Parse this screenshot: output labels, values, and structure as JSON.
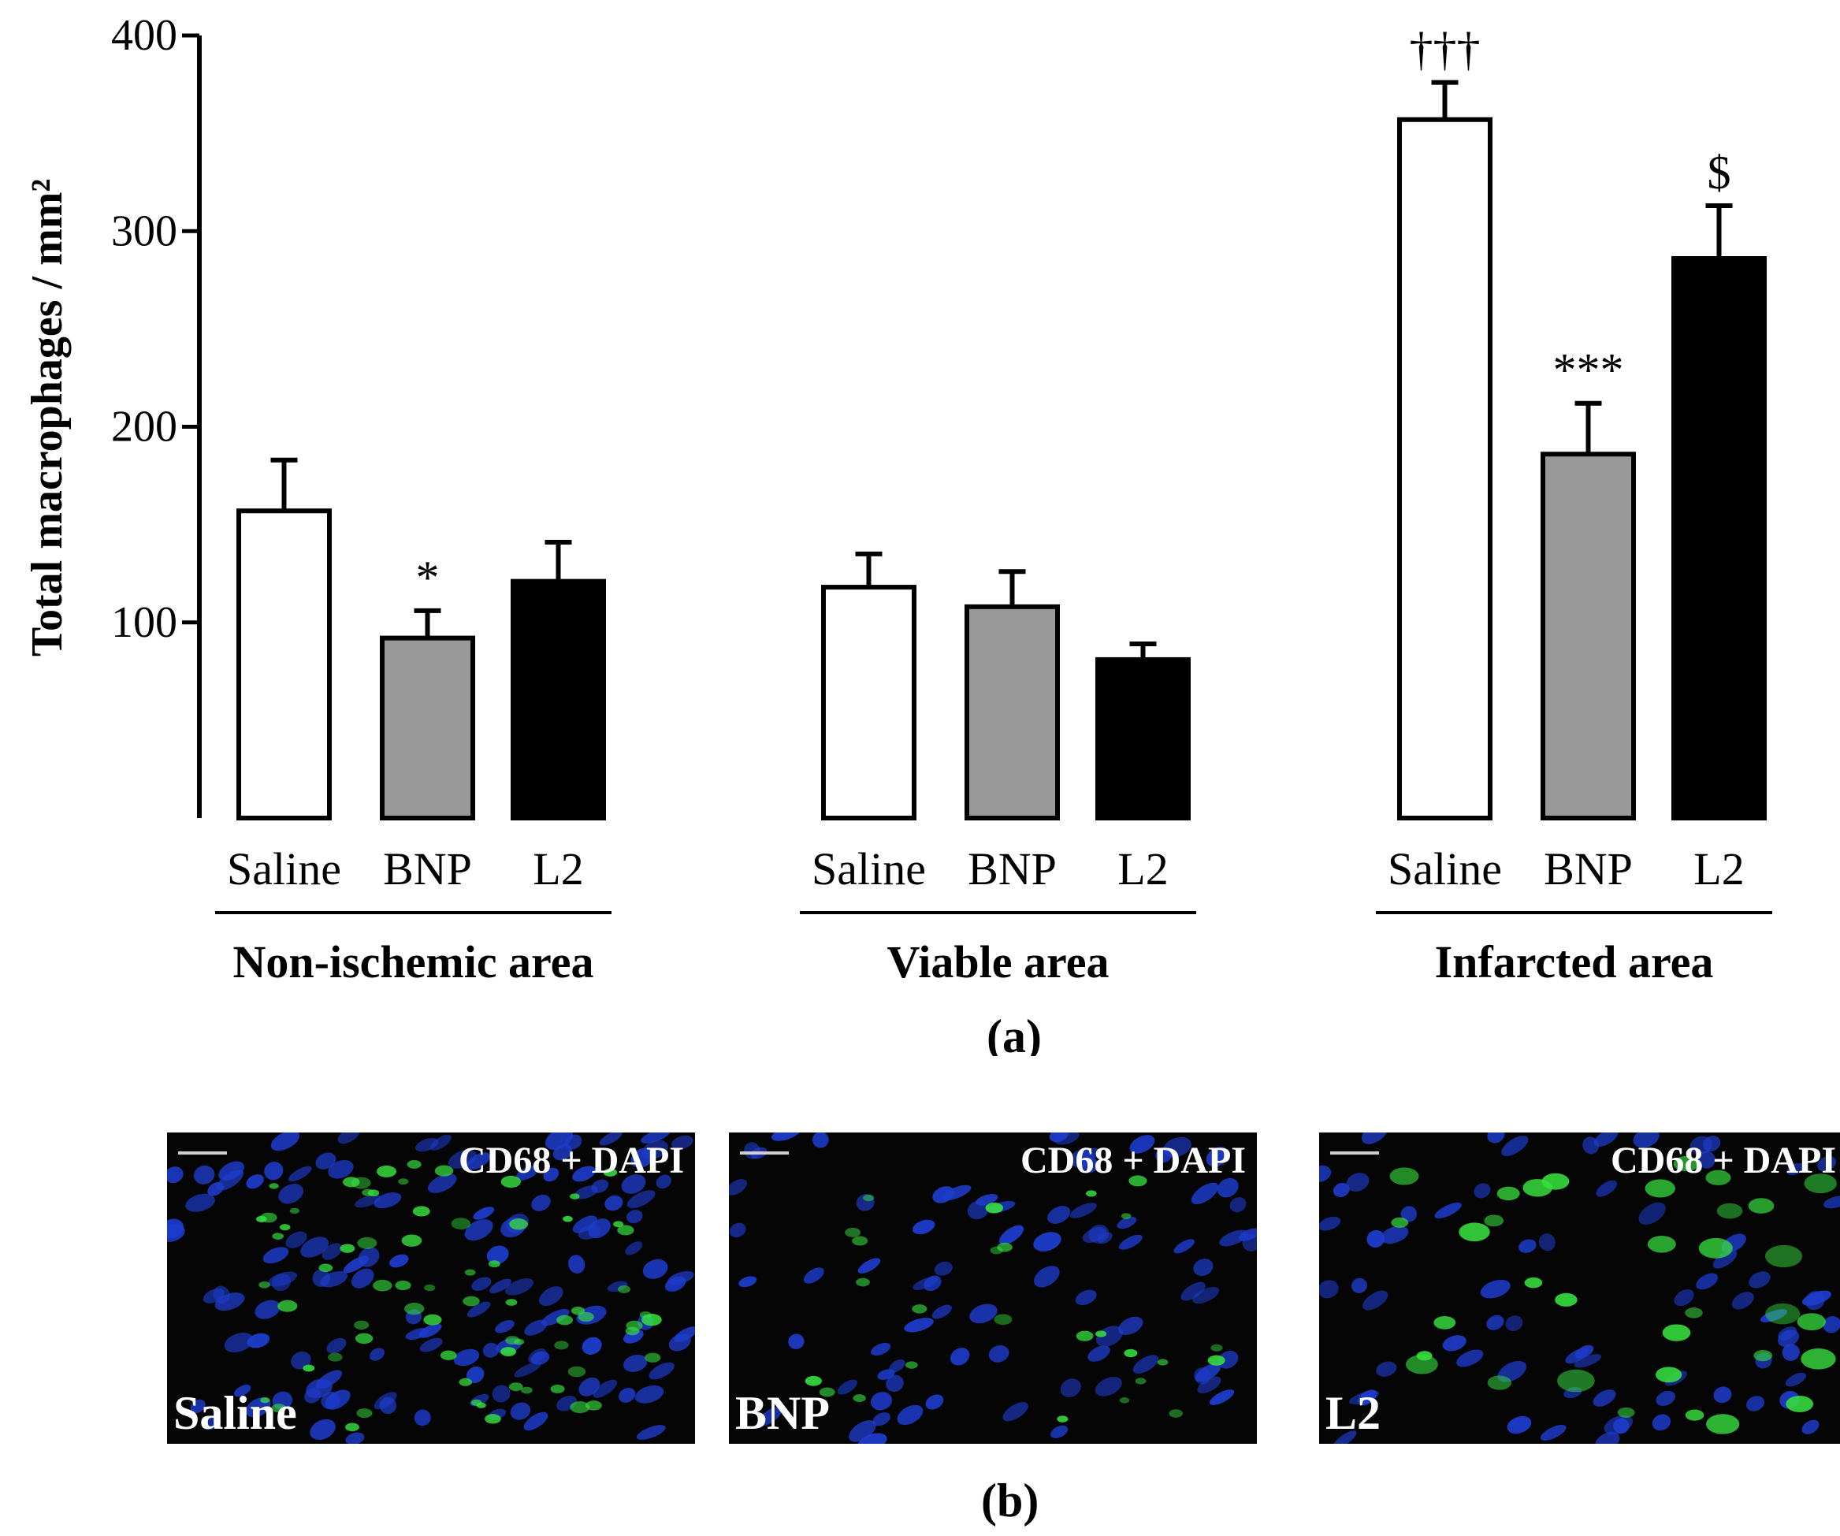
{
  "chart_data": {
    "type": "bar",
    "ylabel": "Total macrophages / mm²",
    "ylim": [
      0,
      400
    ],
    "yticks": [
      100,
      200,
      300,
      400
    ],
    "grid": false,
    "caption": "(a)",
    "groups": [
      {
        "name": "Non-ischemic area",
        "bars": [
          {
            "label": "Saline",
            "value": 157,
            "error": 26,
            "fill": "#ffffff",
            "annotation": ""
          },
          {
            "label": "BNP",
            "value": 92,
            "error": 14,
            "fill": "#999999",
            "annotation": "*"
          },
          {
            "label": "L2",
            "value": 121,
            "error": 20,
            "fill": "#000000",
            "annotation": ""
          }
        ]
      },
      {
        "name": "Viable area",
        "bars": [
          {
            "label": "Saline",
            "value": 118,
            "error": 17,
            "fill": "#ffffff",
            "annotation": ""
          },
          {
            "label": "BNP",
            "value": 108,
            "error": 18,
            "fill": "#999999",
            "annotation": ""
          },
          {
            "label": "L2",
            "value": 81,
            "error": 8,
            "fill": "#000000",
            "annotation": ""
          }
        ]
      },
      {
        "name": "Infarcted area",
        "bars": [
          {
            "label": "Saline",
            "value": 357,
            "error": 19,
            "fill": "#ffffff",
            "annotation": "†††"
          },
          {
            "label": "BNP",
            "value": 186,
            "error": 26,
            "fill": "#999999",
            "annotation": "***"
          },
          {
            "label": "L2",
            "value": 286,
            "error": 27,
            "fill": "#000000",
            "annotation": "$"
          }
        ]
      }
    ]
  },
  "micrographs": {
    "caption": "(b)",
    "stain_label": "CD68 + DAPI",
    "panels": [
      {
        "label": "Saline"
      },
      {
        "label": "BNP"
      },
      {
        "label": "L2"
      }
    ],
    "colors": {
      "nuclei": "#1e3ccc",
      "cd68": "#38e040",
      "background": "#050505"
    }
  }
}
